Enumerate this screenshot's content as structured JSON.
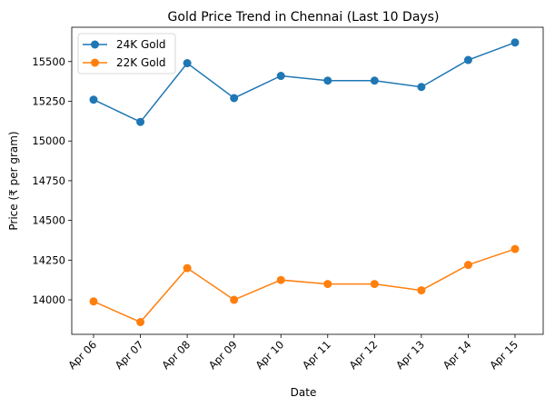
{
  "chart_data": {
    "type": "line",
    "title": "Gold Price Trend in Chennai (Last 10 Days)",
    "xlabel": "Date",
    "ylabel": "Price (₹ per gram)",
    "categories": [
      "Apr 06",
      "Apr 07",
      "Apr 08",
      "Apr 09",
      "Apr 10",
      "Apr 11",
      "Apr 12",
      "Apr 13",
      "Apr 14",
      "Apr 15"
    ],
    "yticks": [
      14000,
      14250,
      14500,
      14750,
      15000,
      15250,
      15500
    ],
    "ylim": [
      13783,
      15716
    ],
    "grid": false,
    "legend_position": "top-left",
    "series": [
      {
        "name": "24K Gold",
        "color": "#1f77b4",
        "values": [
          15260,
          15120,
          15490,
          15270,
          15410,
          15380,
          15380,
          15340,
          15510,
          15620
        ]
      },
      {
        "name": "22K Gold",
        "color": "#ff7f0e",
        "values": [
          13990,
          13860,
          14200,
          14000,
          14125,
          14100,
          14100,
          14060,
          14220,
          14320
        ]
      }
    ]
  }
}
